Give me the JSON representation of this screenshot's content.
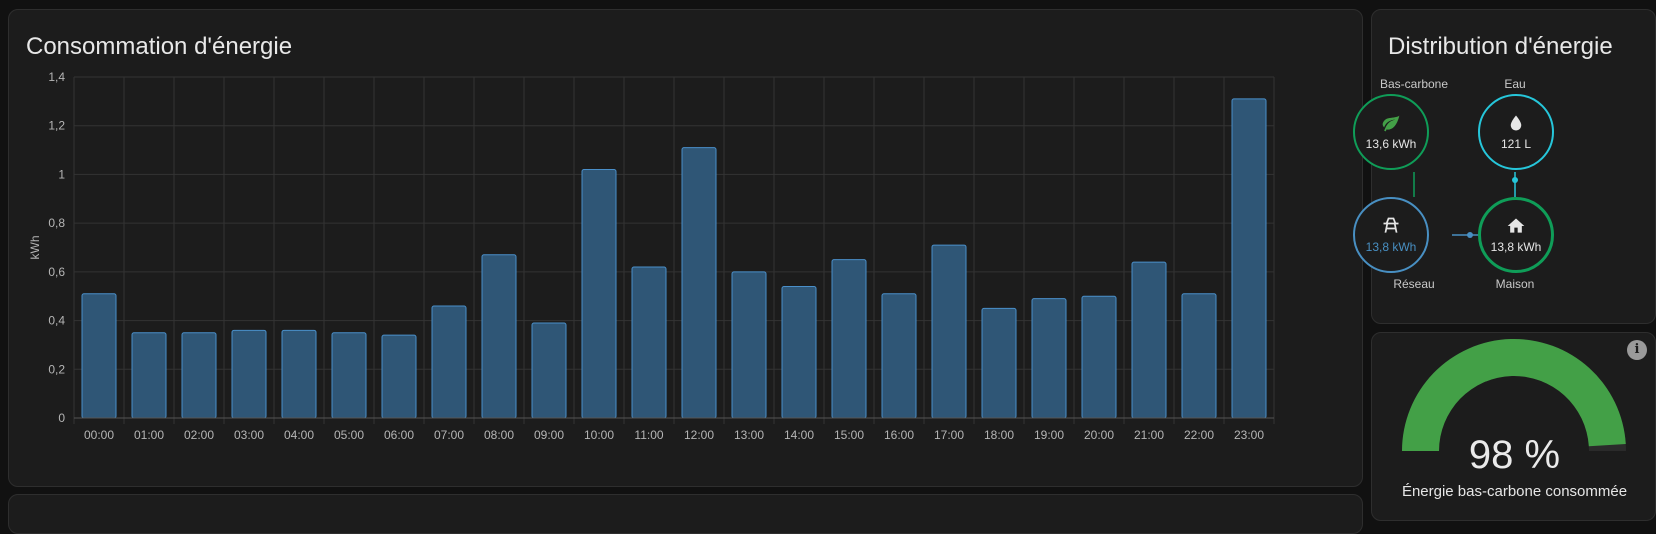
{
  "consumption_card": {
    "title": "Consommation d'énergie"
  },
  "chart_data": {
    "type": "bar",
    "title": "Consommation d'énergie",
    "ylabel": "kWh",
    "xlabel": "",
    "categories": [
      "00:00",
      "01:00",
      "02:00",
      "03:00",
      "04:00",
      "05:00",
      "06:00",
      "07:00",
      "08:00",
      "09:00",
      "10:00",
      "11:00",
      "12:00",
      "13:00",
      "14:00",
      "15:00",
      "16:00",
      "17:00",
      "18:00",
      "19:00",
      "20:00",
      "21:00",
      "22:00",
      "23:00"
    ],
    "values": [
      0.51,
      0.35,
      0.35,
      0.36,
      0.36,
      0.35,
      0.34,
      0.46,
      0.67,
      0.39,
      1.02,
      0.62,
      1.11,
      0.6,
      0.54,
      0.65,
      0.51,
      0.71,
      0.45,
      0.49,
      0.5,
      0.64,
      0.51,
      1.31
    ],
    "yticks": [
      "0",
      "0,2",
      "0,4",
      "0,6",
      "0,8",
      "1",
      "1,2",
      "1,4"
    ],
    "ylim": [
      0,
      1.4
    ],
    "grid": true,
    "bar_color": "#4a8fc9"
  },
  "distribution_card": {
    "title": "Distribution d'énergie",
    "low_carbon": {
      "label": "Bas-carbone",
      "value": "13,6 kWh",
      "icon": "leaf-icon",
      "color": "#0f9d58"
    },
    "water": {
      "label": "Eau",
      "value": "121 L",
      "icon": "water-drop-icon",
      "color": "#26c6da"
    },
    "grid": {
      "label": "Réseau",
      "value": "13,8 kWh",
      "icon": "transmission-tower-icon",
      "color": "#488fc2"
    },
    "home": {
      "label": "Maison",
      "value": "13,8 kWh",
      "icon": "home-icon",
      "color": "#0f9d58"
    }
  },
  "gauge_card": {
    "value_text": "98 %",
    "percent": 98,
    "caption": "Énergie bas-carbone consommée",
    "color": "#43a047"
  }
}
